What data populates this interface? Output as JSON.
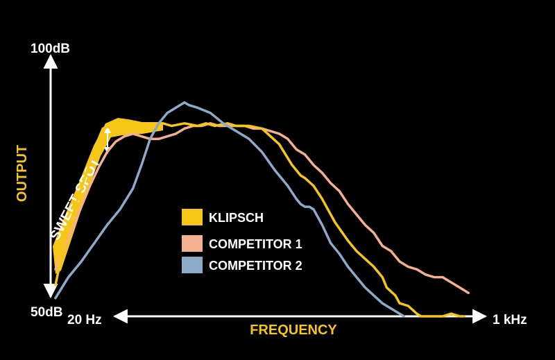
{
  "chart_data": {
    "type": "line",
    "ylabel": "OUTPUT",
    "xlabel": "FREQUENCY",
    "y_top_label": "100dB",
    "y_bottom_label": "50dB",
    "x_left_label": "20 Hz",
    "x_right_label": "1 kHz",
    "ylim": [
      50,
      100
    ],
    "xlim": [
      0,
      100
    ],
    "grid": false,
    "legend_position": "center",
    "annotation": "SWEET SPOT",
    "colors": {
      "background": "#000000",
      "axis": "#ffffff",
      "label": "#f5c518"
    },
    "series": [
      {
        "name": "KLIPSCH",
        "color": "#f5c518",
        "x": [
          0,
          1.5,
          3,
          5,
          7,
          9,
          11,
          13,
          15,
          17,
          19,
          21,
          23,
          25,
          27,
          30,
          33,
          35,
          37,
          40,
          42,
          45,
          48,
          50,
          52,
          55,
          57,
          58,
          60,
          62,
          63,
          65,
          68,
          70,
          72,
          74,
          76,
          77,
          79,
          80,
          82,
          84,
          85,
          86,
          88,
          90,
          92,
          94,
          95
        ],
        "y": [
          56,
          62,
          67,
          72,
          77,
          82,
          86,
          86.5,
          86,
          86,
          86.5,
          86.5,
          86.5,
          87,
          86.5,
          87,
          86.5,
          87,
          86.5,
          87,
          86.5,
          86.5,
          86,
          84.5,
          83,
          79,
          77,
          76.5,
          75,
          72.5,
          71,
          68,
          64.5,
          62.5,
          61,
          59.5,
          57.5,
          55.5,
          54,
          52.5,
          52,
          50.5,
          50,
          50,
          50,
          50,
          50.5,
          50,
          50
        ]
      },
      {
        "name": "COMPETITOR 1",
        "color": "#f4b090",
        "x": [
          0,
          2,
          4,
          6,
          8,
          10,
          12,
          14,
          16,
          18,
          20,
          22,
          24,
          26,
          28,
          30,
          32,
          34,
          36,
          38,
          40,
          42,
          44,
          46,
          48,
          50,
          52,
          54,
          56,
          58,
          60,
          62,
          64,
          66,
          68,
          70,
          72,
          74,
          76,
          78,
          80,
          82,
          84,
          86,
          88,
          90,
          92,
          94,
          96
        ],
        "y": [
          59,
          63,
          67,
          71,
          75,
          78.5,
          81.5,
          83.5,
          84.5,
          85,
          84.5,
          84,
          84,
          84.5,
          85,
          86,
          86.5,
          86.5,
          87,
          86.5,
          86.5,
          86.5,
          86.5,
          86,
          86,
          85.5,
          85,
          84,
          82,
          81,
          79,
          77.5,
          75.5,
          74,
          71.5,
          69.5,
          67.5,
          66,
          63.5,
          62.5,
          60.5,
          59.5,
          59,
          58,
          57.5,
          57.5,
          56.5,
          55.5,
          54.5
        ]
      },
      {
        "name": "COMPETITOR 2",
        "color": "#8fa9c8",
        "x": [
          0,
          3,
          6,
          9,
          12,
          15,
          18,
          20,
          22,
          24,
          26,
          28,
          29,
          30,
          31,
          33,
          36,
          39,
          42,
          45,
          48,
          51,
          54,
          56,
          57,
          58,
          59,
          60,
          62,
          64,
          66,
          68,
          70,
          72,
          74,
          76,
          78,
          80,
          81
        ],
        "y": [
          53.5,
          57.5,
          60.5,
          64,
          67.5,
          70.5,
          74.5,
          79,
          84,
          87,
          89,
          90,
          90.5,
          91,
          90.5,
          90,
          89,
          87,
          85.5,
          84,
          81.5,
          78,
          75,
          72.5,
          71.5,
          71,
          71,
          70.5,
          67.5,
          64,
          62,
          59.5,
          57.5,
          55.5,
          54,
          52.5,
          51.5,
          50.5,
          50
        ]
      }
    ]
  },
  "legend": {
    "items": [
      {
        "label": "KLIPSCH",
        "color": "#f5c518"
      },
      {
        "label": "COMPETITOR 1",
        "color": "#f4b090"
      },
      {
        "label": "COMPETITOR 2",
        "color": "#8fa9c8"
      }
    ]
  }
}
